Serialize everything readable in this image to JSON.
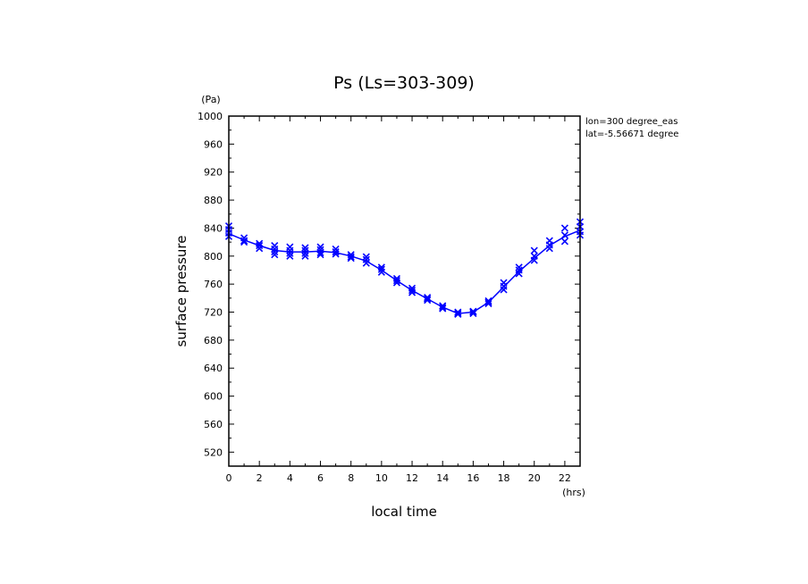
{
  "chart_data": {
    "type": "scatter",
    "title": "Ps (Ls=303-309)",
    "xlabel": "local time",
    "ylabel": "surface pressure",
    "xunit": "(hrs)",
    "yunit": "(Pa)",
    "annotations": [
      "lon=300 degree_eas",
      "lat=-5.56671 degree"
    ],
    "xlim": [
      0,
      23
    ],
    "ylim": [
      500,
      1000
    ],
    "xticks": [
      0,
      2,
      4,
      6,
      8,
      10,
      12,
      14,
      16,
      18,
      20,
      22
    ],
    "yticks": [
      520,
      560,
      600,
      640,
      680,
      720,
      760,
      800,
      840,
      880,
      920,
      960,
      1000
    ],
    "series_color": "#0000ff",
    "series": [
      {
        "x": [
          0,
          1,
          2,
          3,
          4,
          5,
          6,
          7,
          8,
          9,
          10,
          11,
          12,
          13,
          14,
          15,
          16,
          17,
          18,
          19,
          20,
          21,
          22,
          23
        ],
        "values": [
          832,
          823,
          815,
          808,
          806,
          806,
          807,
          805,
          800,
          793,
          780,
          765,
          751,
          739,
          727,
          718,
          720,
          734,
          756,
          778,
          797,
          815,
          828,
          837
        ],
        "points": [
          [
            0,
            843
          ],
          [
            0,
            838
          ],
          [
            0,
            833
          ],
          [
            0,
            828
          ],
          [
            1,
            826
          ],
          [
            1,
            822
          ],
          [
            1,
            820
          ],
          [
            2,
            818
          ],
          [
            2,
            815
          ],
          [
            2,
            811
          ],
          [
            3,
            815
          ],
          [
            3,
            810
          ],
          [
            3,
            806
          ],
          [
            3,
            802
          ],
          [
            4,
            813
          ],
          [
            4,
            808
          ],
          [
            4,
            804
          ],
          [
            4,
            800
          ],
          [
            5,
            812
          ],
          [
            5,
            808
          ],
          [
            5,
            804
          ],
          [
            5,
            800
          ],
          [
            6,
            813
          ],
          [
            6,
            809
          ],
          [
            6,
            805
          ],
          [
            6,
            802
          ],
          [
            7,
            810
          ],
          [
            7,
            806
          ],
          [
            7,
            803
          ],
          [
            8,
            802
          ],
          [
            8,
            799
          ],
          [
            8,
            797
          ],
          [
            9,
            799
          ],
          [
            9,
            795
          ],
          [
            9,
            790
          ],
          [
            10,
            784
          ],
          [
            10,
            781
          ],
          [
            10,
            777
          ],
          [
            11,
            768
          ],
          [
            11,
            765
          ],
          [
            11,
            762
          ],
          [
            12,
            754
          ],
          [
            12,
            751
          ],
          [
            12,
            748
          ],
          [
            13,
            741
          ],
          [
            13,
            739
          ],
          [
            13,
            737
          ],
          [
            14,
            729
          ],
          [
            14,
            727
          ],
          [
            14,
            725
          ],
          [
            15,
            720
          ],
          [
            15,
            718
          ],
          [
            15,
            717
          ],
          [
            16,
            721
          ],
          [
            16,
            720
          ],
          [
            16,
            718
          ],
          [
            17,
            736
          ],
          [
            17,
            734
          ],
          [
            17,
            732
          ],
          [
            18,
            762
          ],
          [
            18,
            757
          ],
          [
            18,
            752
          ],
          [
            19,
            784
          ],
          [
            19,
            780
          ],
          [
            19,
            775
          ],
          [
            20,
            808
          ],
          [
            20,
            800
          ],
          [
            20,
            794
          ],
          [
            21,
            822
          ],
          [
            21,
            816
          ],
          [
            21,
            811
          ],
          [
            22,
            840
          ],
          [
            22,
            830
          ],
          [
            22,
            821
          ],
          [
            23,
            849
          ],
          [
            23,
            842
          ],
          [
            23,
            835
          ],
          [
            23,
            830
          ]
        ]
      }
    ]
  }
}
